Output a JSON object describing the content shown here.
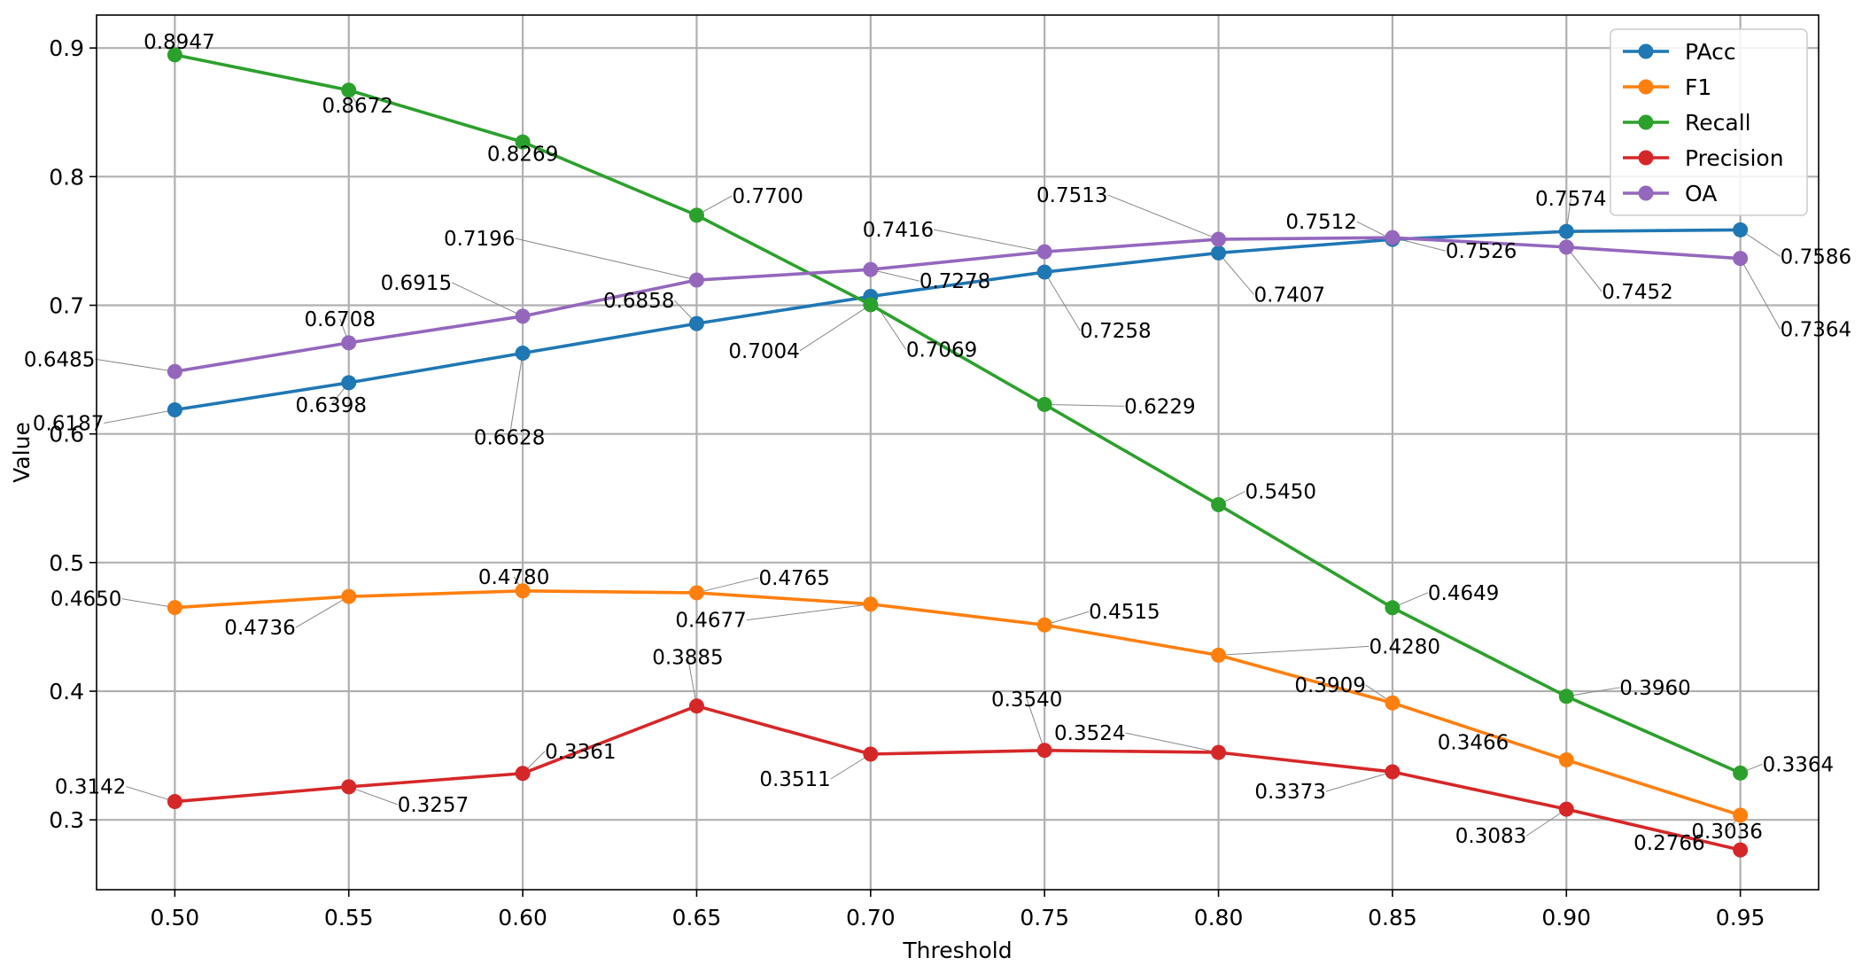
{
  "chart_data": {
    "type": "line",
    "xlabel": "Threshold",
    "ylabel": "Value",
    "x": [
      0.5,
      0.55,
      0.6,
      0.65,
      0.7,
      0.75,
      0.8,
      0.85,
      0.9,
      0.95
    ],
    "x_tick_labels": [
      "0.50",
      "0.55",
      "0.60",
      "0.65",
      "0.70",
      "0.75",
      "0.80",
      "0.85",
      "0.90",
      "0.95"
    ],
    "xlim": [
      0.4775,
      0.9725
    ],
    "y_ticks": [
      0.3,
      0.4,
      0.5,
      0.6,
      0.7,
      0.8,
      0.9
    ],
    "y_tick_labels": [
      "0.3",
      "0.4",
      "0.5",
      "0.6",
      "0.7",
      "0.8",
      "0.9"
    ],
    "ylim": [
      0.2457,
      0.9256
    ],
    "grid": true,
    "legend_position": "top-right",
    "series": [
      {
        "name": "PAcc",
        "color": "#1f77b4",
        "values": [
          0.6187,
          0.6398,
          0.6628,
          0.6858,
          0.7069,
          0.7258,
          0.7407,
          0.7512,
          0.7574,
          0.7586
        ],
        "labels": [
          "0.6187",
          "0.6398",
          "0.6628",
          "0.6858",
          "0.7069",
          "0.7258",
          "0.7407",
          "0.7512",
          "0.7574",
          "0.7586"
        ]
      },
      {
        "name": "F1",
        "color": "#ff7f0e",
        "values": [
          0.465,
          0.4736,
          0.478,
          0.4765,
          0.4677,
          0.4515,
          0.428,
          0.3909,
          0.3466,
          0.3036
        ],
        "labels": [
          "0.4650",
          "0.4736",
          "0.4780",
          "0.4765",
          "0.4677",
          "0.4515",
          "0.4280",
          "0.3909",
          "0.3466",
          "0.3036"
        ]
      },
      {
        "name": "Recall",
        "color": "#2ca02c",
        "values": [
          0.8947,
          0.8672,
          0.8269,
          0.77,
          0.7004,
          0.6229,
          0.545,
          0.4649,
          0.396,
          0.3364
        ],
        "labels": [
          "0.8947",
          "0.8672",
          "0.8269",
          "0.7700",
          "0.7004",
          "0.6229",
          "0.5450",
          "0.4649",
          "0.3960",
          "0.3364"
        ]
      },
      {
        "name": "Precision",
        "color": "#d62728",
        "values": [
          0.3142,
          0.3257,
          0.3361,
          0.3885,
          0.3511,
          0.354,
          0.3524,
          0.3373,
          0.3083,
          0.2766
        ],
        "labels": [
          "0.3142",
          "0.3257",
          "0.3361",
          "0.3885",
          "0.3511",
          "0.3540",
          "0.3524",
          "0.3373",
          "0.3083",
          "0.2766"
        ]
      },
      {
        "name": "OA",
        "color": "#9467bd",
        "values": [
          0.6485,
          0.6708,
          0.6915,
          0.7196,
          0.7278,
          0.7416,
          0.7513,
          0.7526,
          0.7452,
          0.7364
        ],
        "labels": [
          "0.6485",
          "0.6708",
          "0.6915",
          "0.7196",
          "0.7278",
          "0.7416",
          "0.7513",
          "0.7526",
          "0.7452",
          "0.7364"
        ]
      }
    ]
  }
}
